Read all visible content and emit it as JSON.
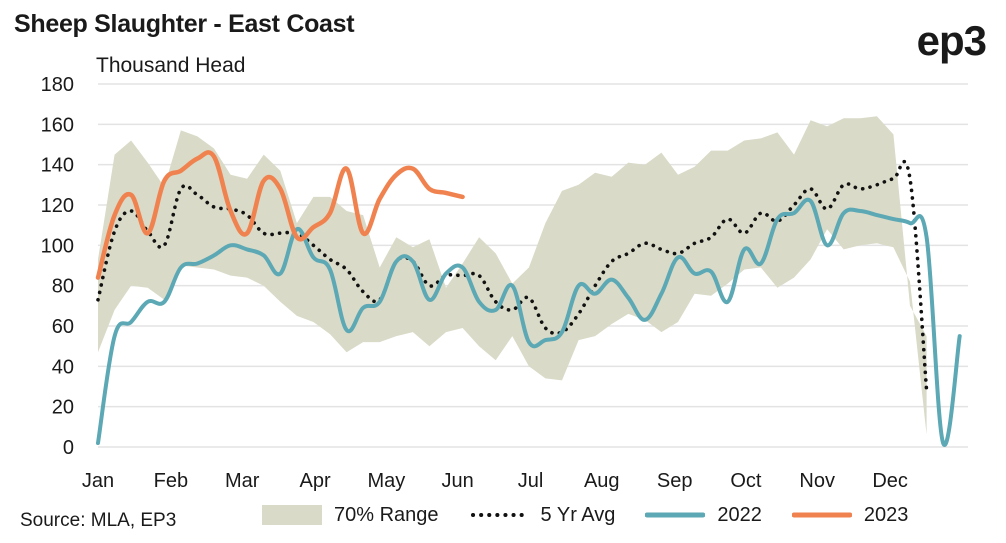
{
  "header": {
    "title": "Sheep Slaughter - East Coast",
    "brand": "ep3"
  },
  "source": "Source: MLA, EP3",
  "legend": [
    {
      "key": "range",
      "label": "70% Range"
    },
    {
      "key": "avg",
      "label": "5 Yr Avg"
    },
    {
      "key": "y2022",
      "label": "2022"
    },
    {
      "key": "y2023",
      "label": "2023"
    }
  ],
  "colors": {
    "range": "#d9dac7",
    "avg": "#111111",
    "y2022": "#5ca8b4",
    "y2023": "#f0824f",
    "grid": "#e3e3e3"
  },
  "chart_data": {
    "type": "line",
    "title": "Sheep Slaughter - East Coast",
    "ylabel": "Thousand Head",
    "xlabel": "",
    "ylim": [
      0,
      180
    ],
    "yticks": [
      0,
      20,
      40,
      60,
      80,
      100,
      120,
      140,
      160,
      180
    ],
    "months": [
      "Jan",
      "Feb",
      "Mar",
      "Apr",
      "May",
      "Jun",
      "Jul",
      "Aug",
      "Sep",
      "Oct",
      "Nov",
      "Dec"
    ],
    "x_unit": "week of year",
    "xlim": [
      1,
      53.5
    ],
    "grid": true,
    "legend_position": "bottom",
    "range_upper": [
      93,
      145,
      152,
      141,
      129,
      157,
      154,
      148,
      135,
      133,
      145,
      137,
      111,
      124,
      124,
      117,
      115,
      89,
      104,
      99,
      103,
      79,
      91,
      104,
      96,
      81,
      89,
      111,
      127,
      130,
      136,
      134,
      141,
      140,
      146,
      135,
      139,
      147,
      147,
      152,
      153,
      156,
      145,
      162,
      159,
      163,
      163,
      164,
      155,
      70,
      55
    ],
    "range_lower": [
      47,
      68,
      80,
      79,
      73,
      90,
      89,
      88,
      85,
      84,
      80,
      72,
      65,
      62,
      56,
      47,
      52,
      52,
      55,
      57,
      50,
      57,
      59,
      50,
      43,
      55,
      40,
      34,
      33,
      53,
      55,
      61,
      66,
      63,
      57,
      62,
      76,
      75,
      81,
      88,
      89,
      79,
      84,
      93,
      108,
      98,
      100,
      101,
      99,
      82,
      6
    ],
    "series": [
      {
        "name": "5 Yr Avg",
        "x": [
          1,
          2,
          3,
          4,
          5,
          6,
          7,
          8,
          9,
          10,
          11,
          12,
          13,
          14,
          15,
          16,
          17,
          18,
          19,
          20,
          21,
          22,
          23,
          24,
          25,
          26,
          27,
          28,
          29,
          30,
          31,
          32,
          33,
          34,
          35,
          36,
          37,
          38,
          39,
          40,
          41,
          42,
          43,
          44,
          45,
          46,
          47,
          48,
          49,
          50,
          51
        ],
        "values": [
          73,
          107,
          117,
          107,
          100,
          128,
          125,
          119,
          118,
          115,
          106,
          106,
          106,
          100,
          93,
          88,
          77,
          73,
          92,
          92,
          80,
          85,
          85,
          85,
          72,
          68,
          74,
          59,
          57,
          66,
          80,
          92,
          96,
          101,
          98,
          96,
          101,
          104,
          113,
          106,
          116,
          112,
          120,
          128,
          118,
          130,
          128,
          130,
          133,
          133,
          28
        ]
      },
      {
        "name": "2022",
        "x": [
          1,
          2,
          3,
          4,
          5,
          6,
          7,
          8,
          9,
          10,
          11,
          12,
          13,
          14,
          15,
          16,
          17,
          18,
          19,
          20,
          21,
          22,
          23,
          24,
          25,
          26,
          27,
          28,
          29,
          30,
          31,
          32,
          33,
          34,
          35,
          36,
          37,
          38,
          39,
          40,
          41,
          42,
          43,
          44,
          45,
          46,
          47,
          48,
          49,
          50,
          51,
          52,
          53
        ],
        "values": [
          2,
          55,
          62,
          72,
          72,
          89,
          91,
          95,
          100,
          98,
          95,
          86,
          108,
          94,
          88,
          58,
          69,
          72,
          92,
          92,
          73,
          86,
          89,
          72,
          68,
          80,
          52,
          53,
          57,
          80,
          76,
          83,
          74,
          63,
          76,
          94,
          86,
          87,
          72,
          98,
          91,
          113,
          116,
          122,
          100,
          116,
          117,
          115,
          113,
          111,
          104,
          2,
          55
        ]
      },
      {
        "name": "2023",
        "x": [
          1,
          2,
          3,
          4,
          5,
          6,
          7,
          8,
          9,
          10,
          11,
          12,
          13,
          14,
          15,
          16,
          17,
          18,
          19,
          20,
          21,
          22,
          23
        ],
        "values": [
          84,
          115,
          125,
          106,
          132,
          137,
          143,
          144,
          117,
          106,
          132,
          128,
          104,
          109,
          116,
          138,
          106,
          123,
          135,
          138,
          128,
          126,
          124
        ]
      }
    ]
  }
}
